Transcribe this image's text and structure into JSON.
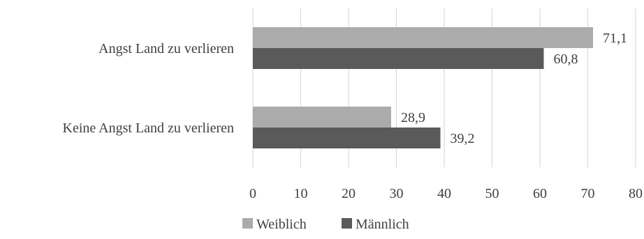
{
  "chart_data": {
    "type": "bar",
    "orientation": "horizontal",
    "categories": [
      "Angst Land zu verlieren",
      "Keine Angst Land zu verlieren"
    ],
    "series": [
      {
        "name": "Weiblich",
        "values": [
          71.1,
          28.9
        ],
        "labels": [
          "71,1",
          "28,9"
        ],
        "color": "#ababab"
      },
      {
        "name": "Männlich",
        "values": [
          60.8,
          39.2
        ],
        "labels": [
          "60,8",
          "39,2"
        ],
        "color": "#5a5a5a"
      }
    ],
    "xlim": [
      0,
      80
    ],
    "xticks": [
      0,
      10,
      20,
      30,
      40,
      50,
      60,
      70,
      80
    ],
    "xtick_labels": [
      "0",
      "10",
      "20",
      "30",
      "40",
      "50",
      "60",
      "70",
      "80"
    ],
    "grid": "vertical",
    "legend_position": "bottom",
    "title": "",
    "xlabel": "",
    "ylabel": ""
  }
}
